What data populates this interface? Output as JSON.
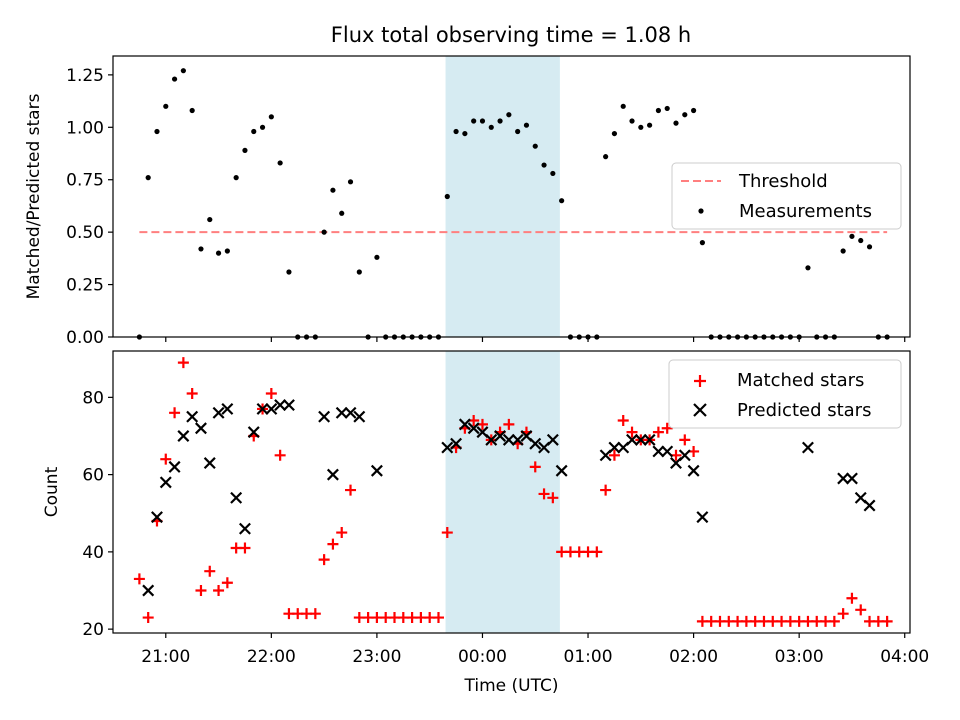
{
  "title": "Flux total observing time = 1.08 h",
  "chart_data": [
    {
      "type": "scatter",
      "panel": "top",
      "ylabel": "Matched/Predicted stars",
      "xlabel": "",
      "ylim": [
        0,
        1.34
      ],
      "xlim": [
        "20:30",
        "04:03"
      ],
      "yticks": [
        0.0,
        0.25,
        0.5,
        0.75,
        1.0,
        1.25
      ],
      "ytick_labels": [
        "0.00",
        "0.25",
        "0.50",
        "0.75",
        "1.00",
        "1.25"
      ],
      "grid": false,
      "legend": "center-right",
      "highlight_span": [
        "23:39",
        "00:44"
      ],
      "highlight_color": "#add8e6",
      "threshold": {
        "name": "Threshold",
        "y": 0.5,
        "x_range": [
          "20:45",
          "03:50"
        ],
        "color": "#ff7f7f"
      },
      "series": [
        {
          "name": "Measurements",
          "color": "#000000",
          "marker": "dot",
          "points": [
            [
              "20:45",
              0.0
            ],
            [
              "20:50",
              0.76
            ],
            [
              "20:55",
              0.98
            ],
            [
              "21:00",
              1.1
            ],
            [
              "21:05",
              1.23
            ],
            [
              "21:10",
              1.27
            ],
            [
              "21:15",
              1.08
            ],
            [
              "21:20",
              0.42
            ],
            [
              "21:25",
              0.56
            ],
            [
              "21:30",
              0.4
            ],
            [
              "21:35",
              0.41
            ],
            [
              "21:40",
              0.76
            ],
            [
              "21:45",
              0.89
            ],
            [
              "21:50",
              0.98
            ],
            [
              "21:55",
              1.0
            ],
            [
              "22:00",
              1.05
            ],
            [
              "22:05",
              0.83
            ],
            [
              "22:10",
              0.31
            ],
            [
              "22:15",
              0.0
            ],
            [
              "22:20",
              0.0
            ],
            [
              "22:25",
              0.0
            ],
            [
              "22:30",
              0.5
            ],
            [
              "22:35",
              0.7
            ],
            [
              "22:40",
              0.59
            ],
            [
              "22:45",
              0.74
            ],
            [
              "22:50",
              0.31
            ],
            [
              "22:55",
              0.0
            ],
            [
              "23:00",
              0.38
            ],
            [
              "23:05",
              0.0
            ],
            [
              "23:10",
              0.0
            ],
            [
              "23:15",
              0.0
            ],
            [
              "23:20",
              0.0
            ],
            [
              "23:25",
              0.0
            ],
            [
              "23:30",
              0.0
            ],
            [
              "23:35",
              0.0
            ],
            [
              "23:40",
              0.67
            ],
            [
              "23:45",
              0.98
            ],
            [
              "23:50",
              0.97
            ],
            [
              "23:55",
              1.03
            ],
            [
              "00:00",
              1.03
            ],
            [
              "00:05",
              1.0
            ],
            [
              "00:10",
              1.03
            ],
            [
              "00:15",
              1.06
            ],
            [
              "00:20",
              0.98
            ],
            [
              "00:25",
              1.01
            ],
            [
              "00:30",
              0.91
            ],
            [
              "00:35",
              0.82
            ],
            [
              "00:40",
              0.78
            ],
            [
              "00:45",
              0.65
            ],
            [
              "00:50",
              0.0
            ],
            [
              "00:55",
              0.0
            ],
            [
              "01:00",
              0.0
            ],
            [
              "01:05",
              0.0
            ],
            [
              "01:10",
              0.86
            ],
            [
              "01:15",
              0.97
            ],
            [
              "01:20",
              1.1
            ],
            [
              "01:25",
              1.03
            ],
            [
              "01:30",
              1.0
            ],
            [
              "01:35",
              1.01
            ],
            [
              "01:40",
              1.08
            ],
            [
              "01:45",
              1.09
            ],
            [
              "01:50",
              1.02
            ],
            [
              "01:55",
              1.06
            ],
            [
              "02:00",
              1.08
            ],
            [
              "02:05",
              0.45
            ],
            [
              "02:10",
              0.0
            ],
            [
              "02:15",
              0.0
            ],
            [
              "02:20",
              0.0
            ],
            [
              "02:25",
              0.0
            ],
            [
              "02:30",
              0.0
            ],
            [
              "02:35",
              0.0
            ],
            [
              "02:40",
              0.0
            ],
            [
              "02:45",
              0.0
            ],
            [
              "02:50",
              0.0
            ],
            [
              "02:55",
              0.0
            ],
            [
              "03:00",
              0.0
            ],
            [
              "03:05",
              0.33
            ],
            [
              "03:10",
              0.0
            ],
            [
              "03:15",
              0.0
            ],
            [
              "03:20",
              0.0
            ],
            [
              "03:25",
              0.41
            ],
            [
              "03:30",
              0.48
            ],
            [
              "03:35",
              0.46
            ],
            [
              "03:40",
              0.43
            ],
            [
              "03:45",
              0.0
            ],
            [
              "03:50",
              0.0
            ]
          ]
        }
      ]
    },
    {
      "type": "scatter",
      "panel": "bottom",
      "ylabel": "Count",
      "xlabel": "Time (UTC)",
      "ylim": [
        19,
        92
      ],
      "xlim": [
        "20:30",
        "04:03"
      ],
      "yticks": [
        20,
        40,
        60,
        80
      ],
      "ytick_labels": [
        "20",
        "40",
        "60",
        "80"
      ],
      "xticks": [
        "21:00",
        "22:00",
        "23:00",
        "00:00",
        "01:00",
        "02:00",
        "03:00",
        "04:00"
      ],
      "xtick_labels": [
        "21:00",
        "22:00",
        "23:00",
        "00:00",
        "01:00",
        "02:00",
        "03:00",
        "04:00"
      ],
      "grid": false,
      "legend": "top-right",
      "highlight_span": [
        "23:39",
        "00:44"
      ],
      "highlight_color": "#add8e6",
      "series": [
        {
          "name": "Matched stars",
          "color": "#ff0000",
          "marker": "plus",
          "points": [
            [
              "20:45",
              33
            ],
            [
              "20:50",
              23
            ],
            [
              "20:55",
              48
            ],
            [
              "21:00",
              64
            ],
            [
              "21:05",
              76
            ],
            [
              "21:10",
              89
            ],
            [
              "21:15",
              81
            ],
            [
              "21:20",
              30
            ],
            [
              "21:25",
              35
            ],
            [
              "21:30",
              30
            ],
            [
              "21:35",
              32
            ],
            [
              "21:40",
              41
            ],
            [
              "21:45",
              41
            ],
            [
              "21:50",
              70
            ],
            [
              "21:55",
              77
            ],
            [
              "22:00",
              81
            ],
            [
              "22:05",
              65
            ],
            [
              "22:10",
              24
            ],
            [
              "22:15",
              24
            ],
            [
              "22:20",
              24
            ],
            [
              "22:25",
              24
            ],
            [
              "22:30",
              38
            ],
            [
              "22:35",
              42
            ],
            [
              "22:40",
              45
            ],
            [
              "22:45",
              56
            ],
            [
              "22:50",
              23
            ],
            [
              "22:55",
              23
            ],
            [
              "23:00",
              23
            ],
            [
              "23:05",
              23
            ],
            [
              "23:10",
              23
            ],
            [
              "23:15",
              23
            ],
            [
              "23:20",
              23
            ],
            [
              "23:25",
              23
            ],
            [
              "23:30",
              23
            ],
            [
              "23:35",
              23
            ],
            [
              "23:40",
              45
            ],
            [
              "23:45",
              67
            ],
            [
              "23:50",
              72
            ],
            [
              "23:55",
              74
            ],
            [
              "00:00",
              73
            ],
            [
              "00:05",
              69
            ],
            [
              "00:10",
              71
            ],
            [
              "00:15",
              73
            ],
            [
              "00:20",
              68
            ],
            [
              "00:25",
              71
            ],
            [
              "00:30",
              62
            ],
            [
              "00:35",
              55
            ],
            [
              "00:40",
              54
            ],
            [
              "00:45",
              40
            ],
            [
              "00:50",
              40
            ],
            [
              "00:55",
              40
            ],
            [
              "01:00",
              40
            ],
            [
              "01:05",
              40
            ],
            [
              "01:10",
              56
            ],
            [
              "01:15",
              65
            ],
            [
              "01:20",
              74
            ],
            [
              "01:25",
              71
            ],
            [
              "01:30",
              69
            ],
            [
              "01:35",
              69
            ],
            [
              "01:40",
              71
            ],
            [
              "01:45",
              72
            ],
            [
              "01:50",
              65
            ],
            [
              "01:55",
              69
            ],
            [
              "02:00",
              66
            ],
            [
              "02:05",
              22
            ],
            [
              "02:10",
              22
            ],
            [
              "02:15",
              22
            ],
            [
              "02:20",
              22
            ],
            [
              "02:25",
              22
            ],
            [
              "02:30",
              22
            ],
            [
              "02:35",
              22
            ],
            [
              "02:40",
              22
            ],
            [
              "02:45",
              22
            ],
            [
              "02:50",
              22
            ],
            [
              "02:55",
              22
            ],
            [
              "03:00",
              22
            ],
            [
              "03:05",
              22
            ],
            [
              "03:10",
              22
            ],
            [
              "03:15",
              22
            ],
            [
              "03:20",
              22
            ],
            [
              "03:25",
              24
            ],
            [
              "03:30",
              28
            ],
            [
              "03:35",
              25
            ],
            [
              "03:40",
              22
            ],
            [
              "03:45",
              22
            ],
            [
              "03:50",
              22
            ]
          ]
        },
        {
          "name": "Predicted stars",
          "color": "#000000",
          "marker": "x",
          "points": [
            [
              "20:50",
              30
            ],
            [
              "20:55",
              49
            ],
            [
              "21:00",
              58
            ],
            [
              "21:05",
              62
            ],
            [
              "21:10",
              70
            ],
            [
              "21:15",
              75
            ],
            [
              "21:20",
              72
            ],
            [
              "21:25",
              63
            ],
            [
              "21:30",
              76
            ],
            [
              "21:35",
              77
            ],
            [
              "21:40",
              54
            ],
            [
              "21:45",
              46
            ],
            [
              "21:50",
              71
            ],
            [
              "21:55",
              77
            ],
            [
              "22:00",
              77
            ],
            [
              "22:05",
              78
            ],
            [
              "22:10",
              78
            ],
            [
              "22:30",
              75
            ],
            [
              "22:35",
              60
            ],
            [
              "22:40",
              76
            ],
            [
              "22:45",
              76
            ],
            [
              "22:50",
              75
            ],
            [
              "23:00",
              61
            ],
            [
              "23:40",
              67
            ],
            [
              "23:45",
              68
            ],
            [
              "23:50",
              73
            ],
            [
              "23:55",
              72
            ],
            [
              "00:00",
              71
            ],
            [
              "00:05",
              69
            ],
            [
              "00:10",
              70
            ],
            [
              "00:15",
              69
            ],
            [
              "00:20",
              69
            ],
            [
              "00:25",
              70
            ],
            [
              "00:30",
              68
            ],
            [
              "00:35",
              67
            ],
            [
              "00:40",
              69
            ],
            [
              "00:45",
              61
            ],
            [
              "01:10",
              65
            ],
            [
              "01:15",
              67
            ],
            [
              "01:20",
              67
            ],
            [
              "01:25",
              69
            ],
            [
              "01:30",
              69
            ],
            [
              "01:35",
              69
            ],
            [
              "01:40",
              66
            ],
            [
              "01:45",
              66
            ],
            [
              "01:50",
              63
            ],
            [
              "01:55",
              65
            ],
            [
              "02:00",
              61
            ],
            [
              "02:05",
              49
            ],
            [
              "03:05",
              67
            ],
            [
              "03:25",
              59
            ],
            [
              "03:30",
              59
            ],
            [
              "03:35",
              54
            ],
            [
              "03:40",
              52
            ]
          ]
        }
      ]
    }
  ]
}
